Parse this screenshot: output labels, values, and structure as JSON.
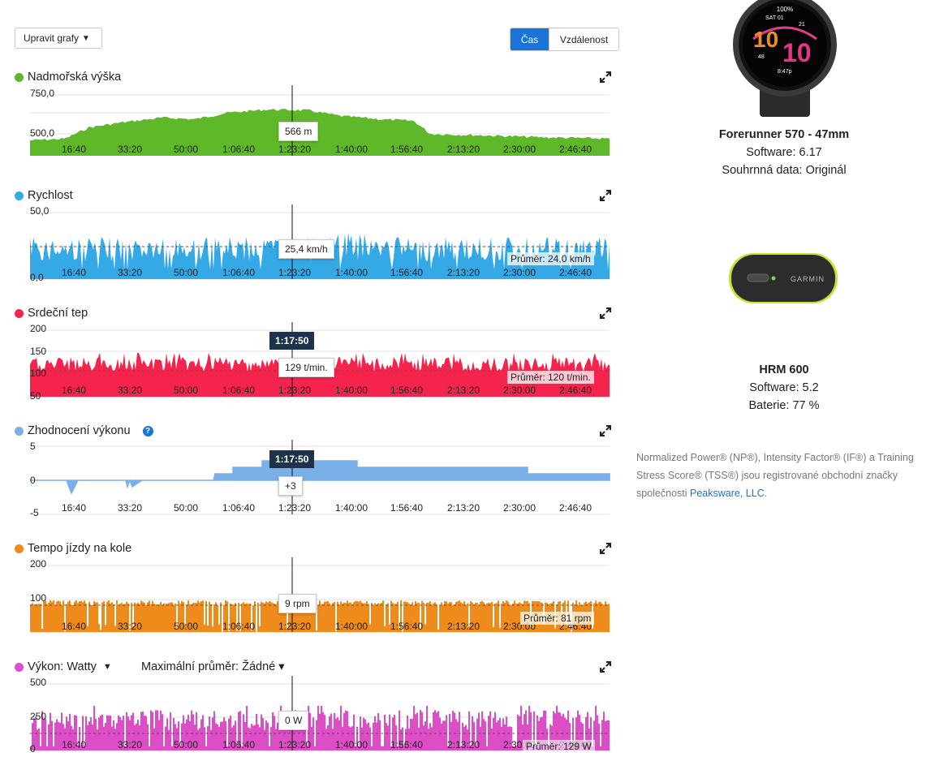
{
  "toolbar": {
    "edit_charts_label": "Upravit grafy",
    "edit_charts_caret": "▼",
    "toggle_time": "Čas",
    "toggle_distance": "Vzdálenost"
  },
  "x_ticks": [
    "16:40",
    "33:20",
    "50:00",
    "1:06:40",
    "1:23:20",
    "1:40:00",
    "1:56:40",
    "2:13:20",
    "2:30:00",
    "2:46:40"
  ],
  "cursor_time": "1:17:50",
  "charts": {
    "elevation": {
      "title": "Nadmořská výška",
      "color": "#5fb829",
      "y_ticks": [
        "750,0",
        "500,0"
      ],
      "tooltip": "566 m"
    },
    "speed": {
      "title": "Rychlost",
      "color": "#35a9e6",
      "y_ticks": [
        "50,0",
        "0,0"
      ],
      "tooltip": "25,4 km/h",
      "average": "Průměr: 24,0 km/h"
    },
    "heart_rate": {
      "title": "Srdeční tep",
      "color": "#f5244d",
      "y_ticks": [
        "200",
        "150",
        "100",
        "50"
      ],
      "tooltip": "129 t/min.",
      "average": "Průměr: 120 t/min."
    },
    "performance": {
      "title": "Zhodnocení výkonu",
      "color": "#79b0e8",
      "help_icon": "?",
      "y_ticks": [
        "5",
        "0",
        "-5"
      ],
      "tooltip": "+3"
    },
    "cadence": {
      "title": "Tempo jízdy na kole",
      "color": "#ef8b1a",
      "y_ticks": [
        "200",
        "100"
      ],
      "tooltip": "9 rpm",
      "average": "Průměr: 81 rpm"
    },
    "power": {
      "title": "Výkon: Watty",
      "caret": "▼",
      "max_avg_label": "Maximální průměr: Žádné",
      "max_avg_caret": "▾",
      "color": "#dc4dc6",
      "y_ticks": [
        "500",
        "250",
        "0"
      ],
      "tooltip": "0 W",
      "average": "Průměr: 129 W"
    }
  },
  "devices": [
    {
      "name": "Forerunner 570 - 47mm",
      "line1": "Software: 6.17",
      "line2": "Souhrnná data: Originál",
      "watch_face": {
        "top": "100%",
        "date": "SAT 01",
        "big": "10",
        "num1": "21",
        "num2": "48",
        "time": "8:47p"
      }
    },
    {
      "name": "HRM 600",
      "line1": "Software: 5.2",
      "line2": "Baterie: 77 %",
      "brand": "GARMIN"
    }
  ],
  "legal": {
    "text": "Normalized Power® (NP®), Intensity Factor® (IF®) a Training Stress Score® (TSS®) jsou registrované obchodní značky společnosti ",
    "link": "Peaksware, LLC",
    "end": "."
  }
}
